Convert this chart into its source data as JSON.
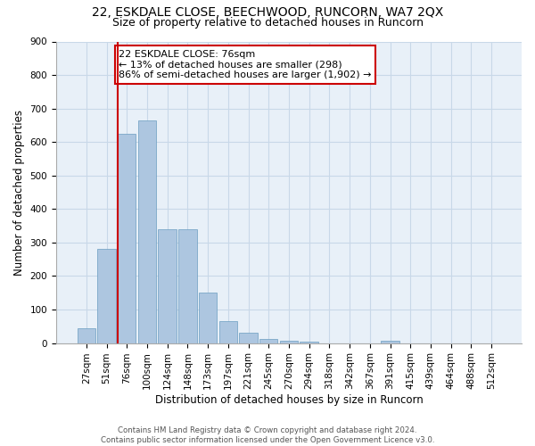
{
  "title1": "22, ESKDALE CLOSE, BEECHWOOD, RUNCORN, WA7 2QX",
  "title2": "Size of property relative to detached houses in Runcorn",
  "xlabel": "Distribution of detached houses by size in Runcorn",
  "ylabel": "Number of detached properties",
  "footer1": "Contains HM Land Registry data © Crown copyright and database right 2024.",
  "footer2": "Contains public sector information licensed under the Open Government Licence v3.0.",
  "bins": [
    "27sqm",
    "51sqm",
    "76sqm",
    "100sqm",
    "124sqm",
    "148sqm",
    "173sqm",
    "197sqm",
    "221sqm",
    "245sqm",
    "270sqm",
    "294sqm",
    "318sqm",
    "342sqm",
    "367sqm",
    "391sqm",
    "415sqm",
    "439sqm",
    "464sqm",
    "488sqm",
    "512sqm"
  ],
  "values": [
    45,
    280,
    625,
    665,
    340,
    340,
    150,
    65,
    30,
    12,
    8,
    5,
    0,
    0,
    0,
    8,
    0,
    0,
    0,
    0,
    0
  ],
  "bar_color": "#adc6e0",
  "bar_edge_color": "#6a9dc0",
  "highlight_line_color": "#cc0000",
  "annotation_line1": "22 ESKDALE CLOSE: 76sqm",
  "annotation_line2": "← 13% of detached houses are smaller (298)",
  "annotation_line3": "86% of semi-detached houses are larger (1,902) →",
  "annotation_box_color": "#cc0000",
  "ylim": [
    0,
    900
  ],
  "yticks": [
    0,
    100,
    200,
    300,
    400,
    500,
    600,
    700,
    800,
    900
  ],
  "grid_color": "#c8d8e8",
  "background_color": "#e8f0f8",
  "title1_fontsize": 10,
  "title2_fontsize": 9,
  "xlabel_fontsize": 8.5,
  "ylabel_fontsize": 8.5,
  "tick_fontsize": 7.5,
  "annotation_fontsize": 8,
  "highlight_bin_index": 2
}
